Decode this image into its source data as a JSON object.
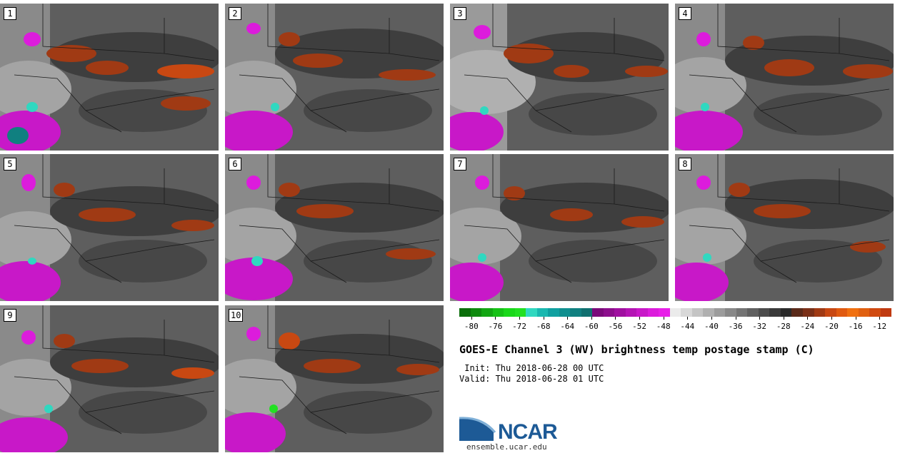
{
  "panels": [
    "1",
    "2",
    "3",
    "4",
    "5",
    "6",
    "7",
    "8",
    "9",
    "10"
  ],
  "colorbar": {
    "colors": [
      "#0a6e0a",
      "#0e8a0e",
      "#12a612",
      "#16c216",
      "#1ad81a",
      "#22e022",
      "#30d8c0",
      "#1ab8b0",
      "#10a0a0",
      "#109090",
      "#108080",
      "#107070",
      "#7a0a7a",
      "#8c0e8c",
      "#a010a0",
      "#b414b4",
      "#c818c8",
      "#dc1cdc",
      "#e820e8",
      "#ebebeb",
      "#d8d8d8",
      "#c4c4c4",
      "#b0b0b0",
      "#9c9c9c",
      "#888888",
      "#747474",
      "#606060",
      "#4c4c4c",
      "#3a3a3a",
      "#2a2a2a",
      "#5a2a1a",
      "#7a3018",
      "#a03a14",
      "#c84812",
      "#e05a10",
      "#f07010",
      "#e06010",
      "#d04a10",
      "#c03a10"
    ],
    "ticks": [
      "-80",
      "-76",
      "-72",
      "-68",
      "-64",
      "-60",
      "-56",
      "-52",
      "-48",
      "-44",
      "-40",
      "-36",
      "-32",
      "-28",
      "-24",
      "-20",
      "-16",
      "-12"
    ],
    "min": -82,
    "max": -10
  },
  "title": "GOES-E Channel 3 (WV) brightness temp postage stamp (C)",
  "init_line": " Init: Thu 2018-06-28 00 UTC",
  "valid_line": "Valid: Thu 2018-06-28 01 UTC",
  "logo_text": "NCAR",
  "url": "ensemble.ucar.edu"
}
